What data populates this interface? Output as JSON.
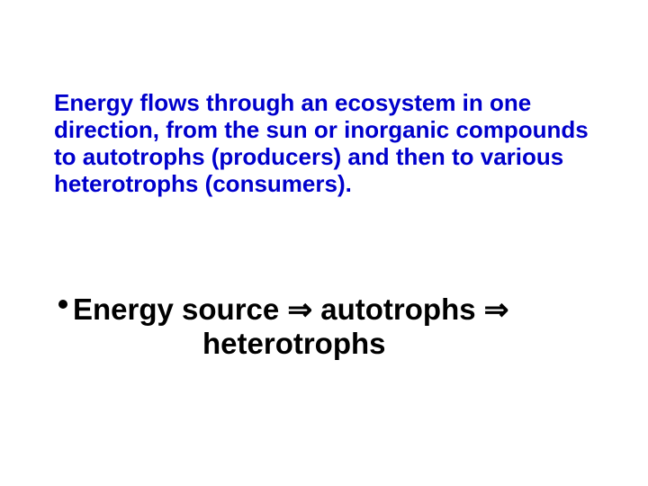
{
  "paragraph": {
    "text": "Energy flows through an ecosystem in one direction, from the sun or inorganic compounds to autotrophs (producers) and then to various heterotrophs (consumers).",
    "color": "#0000cc",
    "fontsize": 26
  },
  "flow": {
    "line1_a": "Energy source ",
    "line1_b": " autotrophs ",
    "line2": "heterotrophs",
    "arrow_glyph": "⇒",
    "color": "#000000",
    "fontsize": 33,
    "bullet": {
      "color": "#000000",
      "diameter": 10
    }
  }
}
